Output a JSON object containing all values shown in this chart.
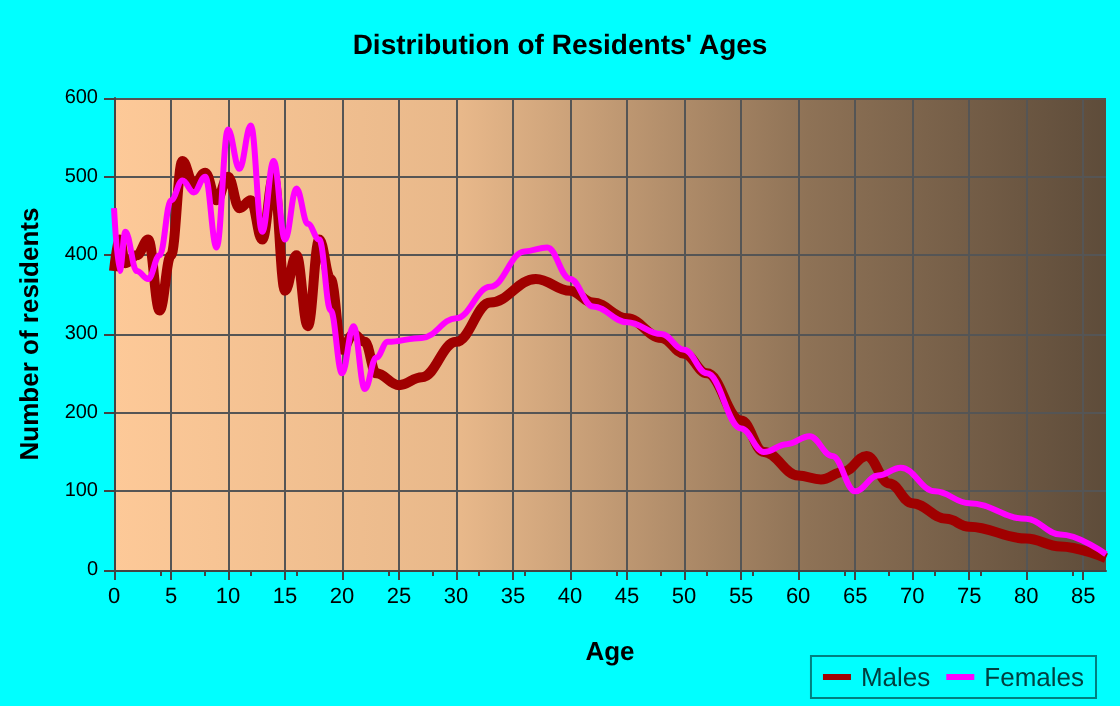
{
  "chart_data": {
    "type": "line",
    "title": "Distribution of Residents' Ages",
    "xlabel": "Age",
    "ylabel": "Number of residents",
    "xlim": [
      0,
      87
    ],
    "xticks": [
      0,
      5,
      10,
      15,
      20,
      25,
      30,
      35,
      40,
      45,
      50,
      55,
      60,
      65,
      70,
      75,
      80,
      85
    ],
    "ylim": [
      0,
      600
    ],
    "yticks": [
      0,
      100,
      200,
      300,
      400,
      500,
      600
    ],
    "grid": true,
    "legend": "bottom right",
    "marker": "none",
    "line_style": "solid",
    "series": [
      {
        "name": "Males",
        "color": "#a00000",
        "x": [
          0,
          0.5,
          1,
          2,
          3,
          4,
          5,
          6,
          7,
          8,
          9,
          10,
          11,
          12,
          13,
          14,
          15,
          16,
          17,
          18,
          19,
          20,
          21,
          22,
          23,
          25,
          27,
          30,
          33,
          37,
          40,
          42,
          45,
          48,
          50,
          52,
          55,
          57,
          60,
          62,
          64,
          66,
          68,
          70,
          73,
          75,
          80,
          83,
          87
        ],
        "values": [
          380,
          420,
          390,
          400,
          420,
          330,
          400,
          520,
          490,
          505,
          470,
          500,
          460,
          470,
          420,
          500,
          355,
          400,
          310,
          420,
          370,
          280,
          300,
          290,
          250,
          235,
          245,
          290,
          340,
          370,
          355,
          340,
          320,
          295,
          275,
          250,
          190,
          150,
          120,
          115,
          125,
          145,
          110,
          85,
          65,
          55,
          40,
          30,
          15
        ]
      },
      {
        "name": "Females",
        "color": "#ff00ff",
        "x": [
          0,
          0.5,
          1,
          2,
          3,
          4,
          5,
          6,
          7,
          8,
          9,
          10,
          11,
          12,
          13,
          14,
          15,
          16,
          17,
          18,
          19,
          20,
          21,
          22,
          23,
          24,
          27,
          30,
          33,
          36,
          38,
          40,
          42,
          45,
          48,
          50,
          52,
          55,
          57,
          59,
          61,
          63,
          65,
          67,
          69,
          72,
          75,
          80,
          83,
          87
        ],
        "values": [
          460,
          380,
          430,
          380,
          370,
          400,
          470,
          495,
          480,
          500,
          410,
          560,
          510,
          565,
          430,
          520,
          420,
          485,
          440,
          420,
          330,
          250,
          310,
          230,
          270,
          290,
          295,
          320,
          360,
          405,
          410,
          370,
          335,
          315,
          300,
          280,
          250,
          180,
          150,
          160,
          170,
          145,
          100,
          120,
          130,
          100,
          85,
          65,
          45,
          20
        ]
      }
    ]
  }
}
